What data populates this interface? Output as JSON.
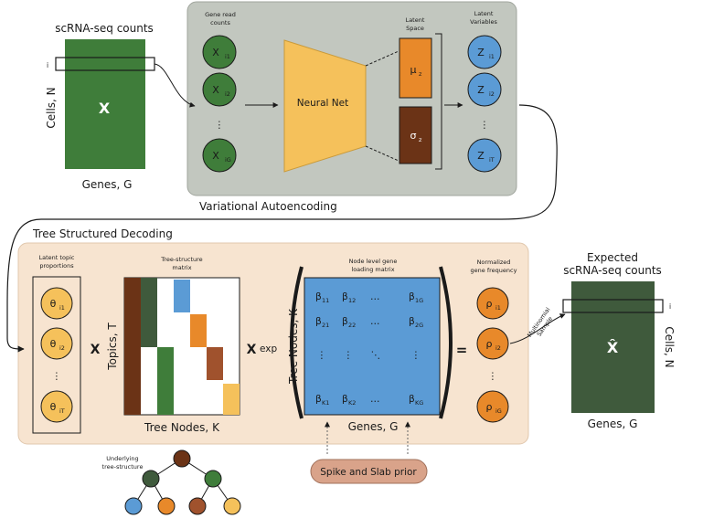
{
  "counts": {
    "title": "scRNA-seq counts",
    "matrix_label": "X",
    "rows_label": "Cells, N",
    "cols_label": "Genes, G",
    "row_index": "i"
  },
  "vae": {
    "section_label": "Variational Autoencoding",
    "gene_read_header": "Gene read counts",
    "latent_space_header": "Latent Space",
    "latent_vars_header": "Latent Variables",
    "network_label": "Neural Net",
    "mu_label": "μ",
    "mu_sub": "z",
    "sigma_label": "σ",
    "sigma_sub": "z",
    "inputs": [
      {
        "base": "X",
        "sub": "i1"
      },
      {
        "base": "X",
        "sub": "i2"
      },
      {
        "base": "X",
        "sub": "iG"
      }
    ],
    "latents": [
      {
        "base": "Z",
        "sub": "i1"
      },
      {
        "base": "Z",
        "sub": "i2"
      },
      {
        "base": "Z",
        "sub": "iT"
      }
    ],
    "ellipsis": "⋮"
  },
  "decoding": {
    "section_label": "Tree Structured Decoding",
    "topic_header": "Latent topic proportions",
    "thetas": [
      {
        "base": "θ",
        "sub": "i1"
      },
      {
        "base": "θ",
        "sub": "i2"
      },
      {
        "base": "θ",
        "sub": "iT"
      }
    ],
    "times": "X",
    "tree_matrix_header": "Tree-structure matrix",
    "tree_rows_label": "Topics, T",
    "tree_cols_label": "Tree Nodes, K",
    "exp_label": "exp",
    "loading_header": "Node level gene loading matrix",
    "loading_rows_label": "Tree Nodes, K",
    "loading_cols_label": "Genes, G",
    "betas": [
      {
        "base": "β",
        "sub": "11"
      },
      {
        "base": "β",
        "sub": "12"
      },
      {
        "base": "β",
        "sub": "1G"
      },
      {
        "base": "β",
        "sub": "21"
      },
      {
        "base": "β",
        "sub": "22"
      },
      {
        "base": "β",
        "sub": "2G"
      },
      {
        "base": "β",
        "sub": "K1"
      },
      {
        "base": "β",
        "sub": "K2"
      },
      {
        "base": "β",
        "sub": "KG"
      }
    ],
    "equals": "=",
    "freq_header": "Normalized gene frequency",
    "rhos": [
      {
        "base": "ρ",
        "sub": "i1"
      },
      {
        "base": "ρ",
        "sub": "i2"
      },
      {
        "base": "ρ",
        "sub": "iG"
      }
    ],
    "tree_label": "Underlying tree-structure",
    "prior_label": "Spike and Slab prior"
  },
  "output": {
    "title_line1": "Expected",
    "title_line2": "scRNA-seq counts",
    "matrix_label": "X̂",
    "rows_label": "Cells, N",
    "cols_label": "Genes, G",
    "row_index": "i",
    "sample_line1": "Multinomial",
    "sample_line2": "Sample"
  },
  "colors": {
    "green": "#3f7d3a",
    "dark_green": "#3f5a3c",
    "orange": "#e8892a",
    "brown": "#6b3316",
    "mid_brown": "#a0522d",
    "blue": "#5b9bd5",
    "yellow": "#f5c15b",
    "gray_panel": "#c2c7bf",
    "tan_panel": "#f7e4d0"
  }
}
